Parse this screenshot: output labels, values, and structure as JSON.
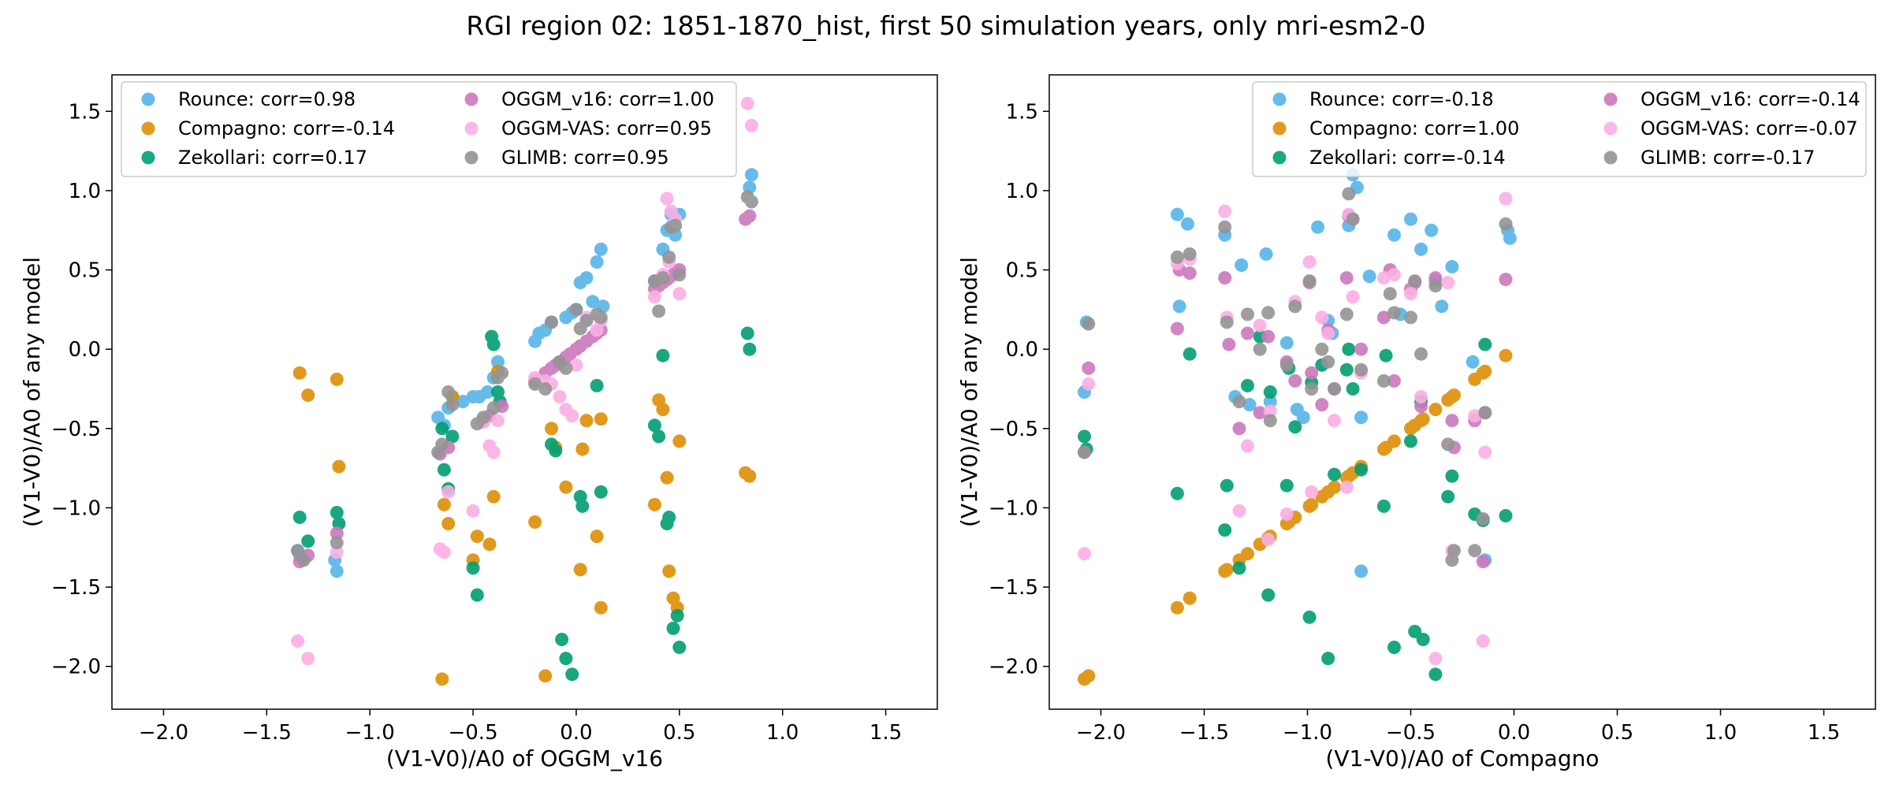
{
  "figure_title": "RGI region 02: 1851-1870_hist, first 50 simulation years, only mri-esm2-0",
  "colors": {
    "Rounce": "#56b4e9",
    "Compagno": "#de8f05",
    "Zekollari": "#029e73",
    "OGGM_v16": "#cc78bc",
    "OGGM-VAS": "#fbafe4",
    "GLIMB": "#949494"
  },
  "chart_data": [
    {
      "type": "scatter",
      "xlabel": "(V1-V0)/A0 of OGGM_v16",
      "ylabel": "(V1-V0)/A0 of any model",
      "xlim": [
        -2.25,
        1.75
      ],
      "ylim": [
        -2.27,
        1.73
      ],
      "xticks": [
        -2.0,
        -1.5,
        -1.0,
        -0.5,
        0.0,
        0.5,
        1.0,
        1.5
      ],
      "yticks": [
        -2.0,
        -1.5,
        -1.0,
        -0.5,
        0.0,
        0.5,
        1.0,
        1.5
      ],
      "xtick_labels": [
        "−2.0",
        "−1.5",
        "−1.0",
        "−0.5",
        "0.0",
        "0.5",
        "1.0",
        "1.5"
      ],
      "ytick_labels": [
        "−2.0",
        "−1.5",
        "−1.0",
        "−0.5",
        "0.0",
        "0.5",
        "1.0",
        "1.5"
      ],
      "legend_position": "top-left",
      "legend": [
        "Rounce: corr=0.98",
        "Compagno: corr=-0.14",
        "Zekollari: corr=0.17",
        "OGGM_v16: corr=1.00",
        "OGGM-VAS: corr=0.95",
        "GLIMB: corr=0.95"
      ],
      "series": [
        {
          "name": "Rounce",
          "x": [
            -1.35,
            -1.34,
            -1.17,
            -1.16,
            -0.67,
            -0.64,
            -0.62,
            -0.6,
            -0.55,
            -0.5,
            -0.47,
            -0.43,
            -0.4,
            -0.38,
            -0.2,
            -0.18,
            -0.15,
            -0.12,
            -0.05,
            -0.02,
            0.0,
            0.02,
            0.05,
            0.08,
            0.1,
            0.12,
            0.13,
            0.38,
            0.42,
            0.44,
            0.46,
            0.48,
            0.5,
            0.85,
            0.84
          ],
          "y": [
            -1.27,
            -1.3,
            -1.33,
            -1.4,
            -0.43,
            -0.48,
            -0.37,
            -0.3,
            -0.33,
            -0.3,
            -0.3,
            -0.27,
            -0.18,
            -0.08,
            0.05,
            0.1,
            0.12,
            0.17,
            0.2,
            0.23,
            0.25,
            0.42,
            0.45,
            0.3,
            0.55,
            0.63,
            0.27,
            0.43,
            0.63,
            0.75,
            0.85,
            0.72,
            0.85,
            1.1,
            1.02
          ]
        },
        {
          "name": "Compagno",
          "x": [
            -1.34,
            -1.3,
            -1.16,
            -1.15,
            -0.64,
            -0.62,
            -0.6,
            -0.5,
            -0.48,
            -0.42,
            -0.4,
            -0.38,
            -0.2,
            -0.15,
            -0.12,
            -0.1,
            -0.05,
            0.02,
            0.03,
            0.05,
            0.1,
            0.12,
            0.12,
            0.38,
            0.4,
            0.42,
            0.44,
            0.45,
            0.47,
            0.49,
            0.5,
            0.82,
            0.84,
            -0.65
          ],
          "y": [
            -0.15,
            -0.29,
            -0.19,
            -0.74,
            -0.98,
            -1.1,
            -0.3,
            -1.33,
            -1.18,
            -1.23,
            -0.93,
            -0.14,
            -1.09,
            -2.06,
            -0.5,
            -0.62,
            -0.87,
            -1.39,
            -0.63,
            -0.45,
            -1.18,
            -0.44,
            -1.63,
            -0.98,
            -0.32,
            -0.38,
            -0.81,
            -1.4,
            -1.57,
            -1.63,
            -0.58,
            -0.78,
            -0.8,
            -2.08
          ]
        },
        {
          "name": "Zekollari",
          "x": [
            -1.34,
            -1.3,
            -1.16,
            -1.15,
            -0.65,
            -0.64,
            -0.62,
            -0.6,
            -0.5,
            -0.48,
            -0.41,
            -0.4,
            -0.38,
            -0.37,
            -0.12,
            -0.1,
            -0.07,
            -0.05,
            -0.02,
            0.02,
            0.03,
            0.1,
            0.12,
            0.38,
            0.4,
            0.42,
            0.44,
            0.45,
            0.47,
            0.49,
            0.5,
            0.83,
            0.84
          ],
          "y": [
            -1.06,
            -1.21,
            -1.03,
            -1.1,
            -0.5,
            -0.76,
            -0.88,
            -0.55,
            -1.38,
            -1.55,
            0.08,
            0.03,
            -0.27,
            -0.33,
            -0.6,
            -0.64,
            -1.83,
            -1.95,
            -2.05,
            -0.93,
            -0.99,
            -0.23,
            -0.9,
            -0.48,
            -0.55,
            -0.04,
            -1.1,
            -1.06,
            -1.76,
            -1.68,
            -1.88,
            0.1,
            0.0
          ]
        },
        {
          "name": "OGGM_v16",
          "x": [
            -1.34,
            -1.3,
            -1.16,
            -0.66,
            -0.62,
            -0.45,
            -0.42,
            -0.36,
            -0.2,
            -0.15,
            -0.12,
            -0.1,
            -0.08,
            -0.05,
            -0.03,
            0.0,
            0.02,
            0.05,
            0.08,
            0.1,
            0.12,
            0.38,
            0.4,
            0.42,
            0.44,
            0.45,
            0.47,
            0.49,
            0.5,
            0.82,
            0.84
          ],
          "y": [
            -1.34,
            -1.3,
            -1.16,
            -0.66,
            -0.62,
            -0.45,
            -0.42,
            -0.36,
            -0.2,
            -0.15,
            -0.12,
            -0.1,
            -0.08,
            -0.05,
            -0.03,
            0.0,
            0.02,
            0.05,
            0.08,
            0.1,
            0.12,
            0.38,
            0.4,
            0.42,
            0.44,
            0.45,
            0.47,
            0.49,
            0.5,
            0.82,
            0.84
          ]
        },
        {
          "name": "OGGM-VAS",
          "x": [
            -1.35,
            -1.3,
            -1.16,
            -0.66,
            -0.64,
            -0.62,
            -0.5,
            -0.45,
            -0.42,
            -0.4,
            -0.38,
            -0.2,
            -0.15,
            -0.12,
            -0.08,
            -0.05,
            -0.02,
            0.0,
            0.05,
            0.1,
            0.12,
            0.38,
            0.42,
            0.44,
            0.45,
            0.46,
            0.48,
            0.5,
            0.83,
            0.85
          ],
          "y": [
            -1.84,
            -1.95,
            -1.28,
            -1.26,
            -1.28,
            -0.9,
            -1.02,
            -0.46,
            -0.61,
            -0.65,
            -0.45,
            -0.18,
            -0.2,
            -0.22,
            -0.3,
            -0.38,
            -0.42,
            -0.1,
            0.2,
            0.12,
            0.18,
            0.33,
            0.47,
            0.95,
            0.55,
            0.87,
            0.82,
            0.35,
            1.55,
            1.41
          ]
        },
        {
          "name": "GLIMB",
          "x": [
            -1.35,
            -1.32,
            -1.16,
            -0.67,
            -0.65,
            -0.62,
            -0.6,
            -0.48,
            -0.45,
            -0.4,
            -0.38,
            -0.36,
            -0.2,
            -0.15,
            -0.12,
            -0.08,
            -0.05,
            0.0,
            0.02,
            0.05,
            0.1,
            0.12,
            0.38,
            0.4,
            0.42,
            0.45,
            0.46,
            0.48,
            0.5,
            0.83,
            0.85
          ],
          "y": [
            -1.27,
            -1.33,
            -1.22,
            -0.65,
            -0.6,
            -0.27,
            -0.35,
            -0.47,
            -0.43,
            -0.37,
            -0.18,
            -0.15,
            -0.22,
            -0.25,
            0.17,
            -0.08,
            -0.12,
            0.25,
            0.13,
            0.18,
            0.22,
            0.2,
            0.43,
            0.24,
            0.45,
            0.58,
            0.77,
            0.78,
            0.47,
            0.96,
            0.93
          ]
        }
      ]
    },
    {
      "type": "scatter",
      "xlabel": "(V1-V0)/A0 of Compagno",
      "ylabel": "(V1-V0)/A0 of any model",
      "xlim": [
        -2.25,
        1.75
      ],
      "ylim": [
        -2.27,
        1.73
      ],
      "xticks": [
        -2.0,
        -1.5,
        -1.0,
        -0.5,
        0.0,
        0.5,
        1.0,
        1.5
      ],
      "yticks": [
        -2.0,
        -1.5,
        -1.0,
        -0.5,
        0.0,
        0.5,
        1.0,
        1.5
      ],
      "xtick_labels": [
        "−2.0",
        "−1.5",
        "−1.0",
        "−0.5",
        "0.0",
        "0.5",
        "1.0",
        "1.5"
      ],
      "ytick_labels": [
        "−2.0",
        "−1.5",
        "−1.0",
        "−0.5",
        "0.0",
        "0.5",
        "1.0",
        "1.5"
      ],
      "legend_position": "top-right",
      "legend": [
        "Rounce: corr=-0.18",
        "Compagno: corr=1.00",
        "Zekollari: corr=-0.14",
        "OGGM_v16: corr=-0.14",
        "OGGM-VAS: corr=-0.07",
        "GLIMB: corr=-0.17"
      ],
      "series": [
        {
          "name": "Rounce",
          "x": [
            -2.08,
            -2.07,
            -1.63,
            -1.62,
            -1.58,
            -1.4,
            -1.35,
            -1.32,
            -1.28,
            -1.2,
            -1.18,
            -1.1,
            -1.05,
            -1.02,
            -0.95,
            -0.9,
            -0.88,
            -0.8,
            -0.78,
            -0.76,
            -0.74,
            -0.7,
            -0.58,
            -0.55,
            -0.5,
            -0.45,
            -0.4,
            -0.38,
            -0.35,
            -0.3,
            -0.2,
            -0.14,
            -0.02,
            -0.03,
            -0.74
          ],
          "y": [
            -0.27,
            0.17,
            0.85,
            0.27,
            0.79,
            0.72,
            -0.3,
            0.53,
            -0.35,
            0.6,
            -0.33,
            0.04,
            -0.38,
            -0.43,
            0.77,
            0.18,
            0.1,
            0.78,
            1.1,
            1.02,
            -0.43,
            0.46,
            0.72,
            0.22,
            0.82,
            0.63,
            0.75,
            0.43,
            0.27,
            0.52,
            -0.08,
            -1.33,
            0.7,
            0.75,
            -1.4
          ]
        },
        {
          "name": "Compagno",
          "x": [
            -2.08,
            -2.06,
            -1.63,
            -1.57,
            -1.4,
            -1.39,
            -1.33,
            -1.29,
            -1.23,
            -1.19,
            -1.18,
            -1.1,
            -1.09,
            -1.06,
            -0.99,
            -0.98,
            -0.93,
            -0.9,
            -0.87,
            -0.81,
            -0.8,
            -0.78,
            -0.74,
            -0.63,
            -0.62,
            -0.58,
            -0.5,
            -0.48,
            -0.45,
            -0.44,
            -0.38,
            -0.32,
            -0.3,
            -0.29,
            -0.19,
            -0.15,
            -0.14,
            -0.04
          ],
          "y": [
            -2.08,
            -2.06,
            -1.63,
            -1.57,
            -1.4,
            -1.39,
            -1.33,
            -1.29,
            -1.23,
            -1.19,
            -1.18,
            -1.1,
            -1.09,
            -1.06,
            -0.99,
            -0.98,
            -0.93,
            -0.9,
            -0.87,
            -0.81,
            -0.8,
            -0.78,
            -0.74,
            -0.63,
            -0.62,
            -0.58,
            -0.5,
            -0.48,
            -0.45,
            -0.44,
            -0.38,
            -0.32,
            -0.3,
            -0.29,
            -0.19,
            -0.15,
            -0.14,
            -0.04
          ]
        },
        {
          "name": "Zekollari",
          "x": [
            -2.08,
            -2.07,
            -1.63,
            -1.57,
            -1.4,
            -1.39,
            -1.33,
            -1.29,
            -1.23,
            -1.19,
            -1.18,
            -1.1,
            -1.09,
            -1.06,
            -0.99,
            -0.98,
            -0.93,
            -0.9,
            -0.87,
            -0.81,
            -0.8,
            -0.78,
            -0.74,
            -0.63,
            -0.62,
            -0.58,
            -0.5,
            -0.48,
            -0.45,
            -0.44,
            -0.38,
            -0.32,
            -0.3,
            -0.19,
            -0.15,
            -0.14,
            -0.04
          ],
          "y": [
            -0.55,
            -0.63,
            -0.91,
            -0.03,
            -1.14,
            -0.86,
            -1.38,
            -0.23,
            0.08,
            -1.55,
            -0.27,
            -0.86,
            -0.12,
            -0.49,
            -1.69,
            -0.21,
            -0.1,
            -1.95,
            -0.79,
            -0.13,
            0.0,
            -0.25,
            -0.76,
            -0.99,
            -0.04,
            -1.88,
            -0.58,
            -1.78,
            -0.33,
            -1.83,
            -2.05,
            -0.93,
            -0.8,
            -1.04,
            -1.08,
            0.03,
            -1.05
          ]
        },
        {
          "name": "OGGM_v16",
          "x": [
            -2.08,
            -2.06,
            -1.63,
            -1.62,
            -1.57,
            -1.4,
            -1.38,
            -1.33,
            -1.29,
            -1.23,
            -1.19,
            -1.1,
            -1.06,
            -0.99,
            -0.98,
            -0.93,
            -0.9,
            -0.87,
            -0.81,
            -0.8,
            -0.78,
            -0.74,
            -0.63,
            -0.6,
            -0.58,
            -0.5,
            -0.48,
            -0.45,
            -0.38,
            -0.3,
            -0.29,
            -0.19,
            -0.15,
            -0.14,
            -0.04
          ],
          "y": [
            -0.65,
            -0.12,
            0.13,
            0.5,
            0.48,
            0.45,
            0.03,
            -0.5,
            0.1,
            -0.4,
            0.08,
            -0.08,
            -0.2,
            0.42,
            -0.15,
            -0.35,
            0.12,
            -0.25,
            0.45,
            0.84,
            0.82,
            0.0,
            0.2,
            0.5,
            -0.2,
            0.38,
            0.42,
            -0.36,
            0.45,
            -0.45,
            -0.62,
            -0.45,
            -1.34,
            -0.4,
            0.44
          ]
        },
        {
          "name": "OGGM-VAS",
          "x": [
            -2.08,
            -2.06,
            -1.63,
            -1.57,
            -1.4,
            -1.39,
            -1.33,
            -1.29,
            -1.23,
            -1.19,
            -1.18,
            -1.1,
            -1.06,
            -0.99,
            -0.98,
            -0.93,
            -0.9,
            -0.87,
            -0.81,
            -0.8,
            -0.78,
            -0.74,
            -0.63,
            -0.58,
            -0.5,
            -0.45,
            -0.38,
            -0.32,
            -0.3,
            -0.19,
            -0.15,
            -0.14,
            -0.04
          ],
          "y": [
            -1.29,
            -0.22,
            0.54,
            0.57,
            0.87,
            0.2,
            -1.02,
            -0.61,
            0.15,
            -1.2,
            -0.39,
            -1.04,
            0.3,
            0.55,
            -0.9,
            0.2,
            0.1,
            -0.45,
            -0.87,
            0.85,
            0.33,
            -0.15,
            0.45,
            0.47,
            0.35,
            -0.3,
            -1.95,
            0.42,
            -1.27,
            -0.42,
            -1.84,
            -0.65,
            0.95
          ]
        },
        {
          "name": "GLIMB",
          "x": [
            -2.08,
            -2.06,
            -1.63,
            -1.57,
            -1.4,
            -1.39,
            -1.33,
            -1.29,
            -1.23,
            -1.19,
            -1.18,
            -1.1,
            -1.06,
            -0.99,
            -0.98,
            -0.93,
            -0.9,
            -0.87,
            -0.81,
            -0.8,
            -0.78,
            -0.74,
            -0.63,
            -0.6,
            -0.58,
            -0.5,
            -0.48,
            -0.45,
            -0.38,
            -0.32,
            -0.3,
            -0.29,
            -0.19,
            -0.15,
            -0.14,
            -0.04
          ],
          "y": [
            -0.65,
            0.16,
            0.58,
            0.6,
            0.77,
            0.17,
            -0.33,
            0.22,
            -0.0,
            0.23,
            -0.45,
            -0.1,
            0.27,
            0.43,
            -0.25,
            0.0,
            -0.08,
            -0.25,
            0.22,
            0.98,
            0.82,
            -0.13,
            -0.2,
            0.35,
            0.23,
            0.2,
            0.43,
            -0.03,
            0.4,
            -0.6,
            -1.33,
            -1.27,
            -1.27,
            -1.07,
            -0.4,
            0.79
          ]
        }
      ]
    }
  ]
}
